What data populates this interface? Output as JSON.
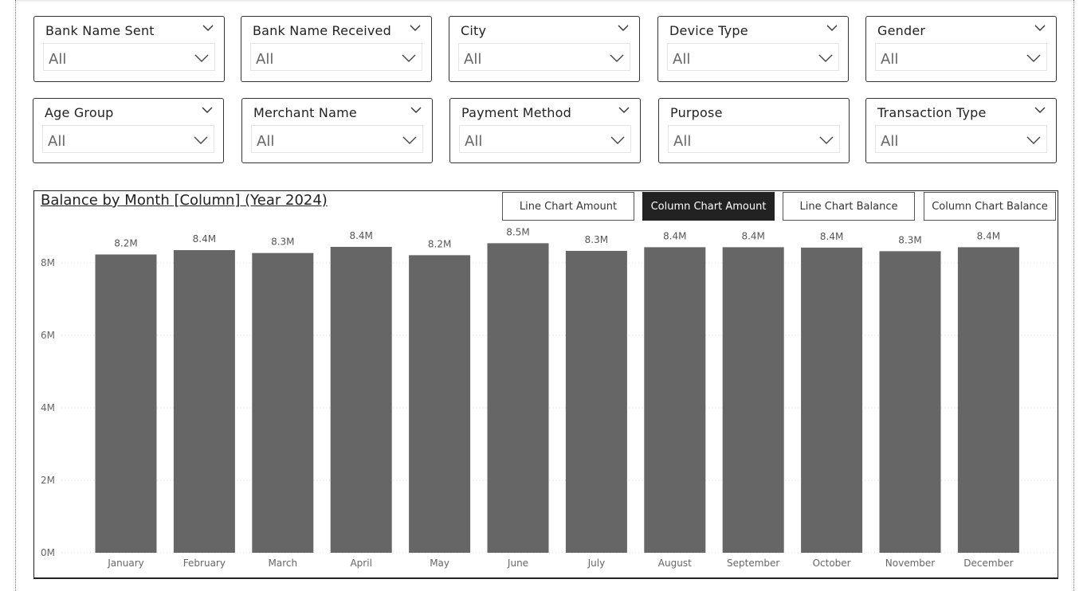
{
  "slicers": [
    {
      "title": "Bank Name Sent",
      "value": "All"
    },
    {
      "title": "Bank Name Received",
      "value": "All"
    },
    {
      "title": "City",
      "value": "All"
    },
    {
      "title": "Device Type",
      "value": "All"
    },
    {
      "title": "Gender",
      "value": "All"
    },
    {
      "title": "Age Group",
      "value": "All"
    },
    {
      "title": "Merchant Name",
      "value": "All"
    },
    {
      "title": "Payment Method",
      "value": "All"
    },
    {
      "title": "Purpose",
      "value": "All"
    },
    {
      "title": "Transaction Type",
      "value": "All"
    }
  ],
  "chart_buttons": {
    "line_amount": "Line Chart Amount",
    "column_amount": "Column Chart Amount",
    "line_balance": "Line Chart Balance",
    "column_balance": "Column Chart Balance"
  },
  "colors": {
    "bar": "#666666",
    "active_button": "#222222",
    "gridline": "#dddddd"
  },
  "chart_data": {
    "type": "bar",
    "title": "Balance by Month [Column] (Year 2024)",
    "categories": [
      "January",
      "February",
      "March",
      "April",
      "May",
      "June",
      "July",
      "August",
      "September",
      "October",
      "November",
      "December"
    ],
    "values": [
      8.23,
      8.35,
      8.27,
      8.44,
      8.21,
      8.54,
      8.33,
      8.43,
      8.43,
      8.42,
      8.32,
      8.43
    ],
    "data_labels": [
      "8.2M",
      "8.4M",
      "8.3M",
      "8.4M",
      "8.2M",
      "8.5M",
      "8.3M",
      "8.4M",
      "8.4M",
      "8.4M",
      "8.3M",
      "8.4M"
    ],
    "yticks": [
      0,
      2,
      4,
      6,
      8
    ],
    "ytick_labels": [
      "0M",
      "2M",
      "4M",
      "6M",
      "8M"
    ],
    "ylim": [
      0,
      8.9
    ],
    "grid": true,
    "xlabel": "",
    "ylabel": ""
  }
}
